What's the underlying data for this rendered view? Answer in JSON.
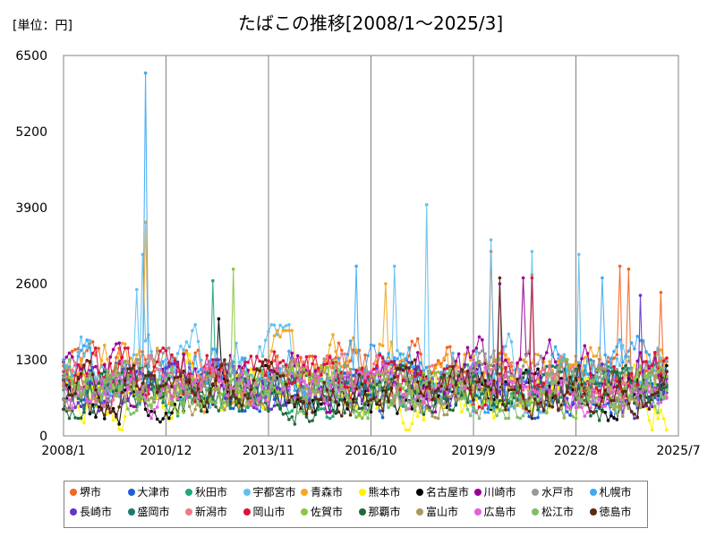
{
  "chart_data": {
    "type": "line",
    "title": "たばこの推移[2008/1～2025/3]",
    "unit_label": "[単位：円]",
    "x_range": [
      "2008/1",
      "2025/7"
    ],
    "x_ticks": [
      "2008/1",
      "2010/12",
      "2013/11",
      "2016/10",
      "2019/9",
      "2022/8",
      "2025/7"
    ],
    "ylim": [
      0,
      6500
    ],
    "y_ticks": [
      0,
      1300,
      2600,
      3900,
      5200,
      6500
    ],
    "grid": {
      "vertical": true,
      "horizontal": false
    },
    "legend_position": "bottom",
    "series": [
      {
        "name": "堺市",
        "color": "#f26522",
        "range": [
          500,
          1700
        ],
        "spikes": [
          [
            "2020/3",
            3150
          ],
          [
            "2023/11",
            2900
          ],
          [
            "2024/2",
            2850
          ],
          [
            "2025/1",
            2450
          ]
        ]
      },
      {
        "name": "大津市",
        "color": "#1f5fd6",
        "range": [
          300,
          1300
        ],
        "spikes": []
      },
      {
        "name": "秋田市",
        "color": "#22a77a",
        "range": [
          300,
          1300
        ],
        "spikes": [
          [
            "2012/4",
            2650
          ]
        ]
      },
      {
        "name": "宇都宮市",
        "color": "#61c1f0",
        "range": [
          400,
          1900
        ],
        "spikes": [
          [
            "2010/2",
            2500
          ],
          [
            "2010/4",
            3100
          ],
          [
            "2017/6",
            2900
          ],
          [
            "2018/5",
            3950
          ],
          [
            "2020/3",
            3350
          ],
          [
            "2021/5",
            3150
          ],
          [
            "2022/9",
            3100
          ]
        ]
      },
      {
        "name": "青森市",
        "color": "#f5a623",
        "range": [
          400,
          1800
        ],
        "spikes": [
          [
            "2010/5",
            3650
          ],
          [
            "2017/3",
            2600
          ]
        ]
      },
      {
        "name": "熊本市",
        "color": "#fff200",
        "range": [
          100,
          1400
        ],
        "spikes": []
      },
      {
        "name": "名古屋市",
        "color": "#000000",
        "range": [
          200,
          1200
        ],
        "spikes": [
          [
            "2012/6",
            2000
          ]
        ]
      },
      {
        "name": "川崎市",
        "color": "#990099",
        "range": [
          400,
          1700
        ],
        "spikes": [
          [
            "2020/6",
            2600
          ],
          [
            "2021/2",
            2700
          ]
        ]
      },
      {
        "name": "水戸市",
        "color": "#999999",
        "range": [
          400,
          1500
        ],
        "spikes": [
          [
            "2021/5",
            2750
          ]
        ]
      },
      {
        "name": "札幌市",
        "color": "#3fa9f5",
        "range": [
          400,
          1700
        ],
        "spikes": [
          [
            "2010/5",
            6200
          ],
          [
            "2016/5",
            2900
          ],
          [
            "2023/5",
            2700
          ]
        ]
      },
      {
        "name": "長崎市",
        "color": "#6633cc",
        "range": [
          300,
          1300
        ],
        "spikes": [
          [
            "2024/6",
            2400
          ]
        ]
      },
      {
        "name": "盛岡市",
        "color": "#1b7a6c",
        "range": [
          300,
          1200
        ],
        "spikes": []
      },
      {
        "name": "新潟市",
        "color": "#f07a8a",
        "range": [
          400,
          1400
        ],
        "spikes": []
      },
      {
        "name": "岡山市",
        "color": "#e0113c",
        "range": [
          400,
          1500
        ],
        "spikes": [
          [
            "2021/5",
            2700
          ]
        ]
      },
      {
        "name": "佐賀市",
        "color": "#8dc63f",
        "range": [
          300,
          1300
        ],
        "spikes": [
          [
            "2012/11",
            2850
          ]
        ]
      },
      {
        "name": "那覇市",
        "color": "#1e6b3c",
        "range": [
          200,
          1200
        ],
        "spikes": []
      },
      {
        "name": "富山市",
        "color": "#a69a5c",
        "range": [
          300,
          1300
        ],
        "spikes": []
      },
      {
        "name": "広島市",
        "color": "#e061e0",
        "range": [
          300,
          1300
        ],
        "spikes": []
      },
      {
        "name": "松江市",
        "color": "#7dbf6b",
        "range": [
          300,
          1300
        ],
        "spikes": []
      },
      {
        "name": "徳島市",
        "color": "#5c2a0e",
        "range": [
          300,
          1300
        ],
        "spikes": [
          [
            "2020/6",
            2700
          ]
        ]
      }
    ]
  }
}
